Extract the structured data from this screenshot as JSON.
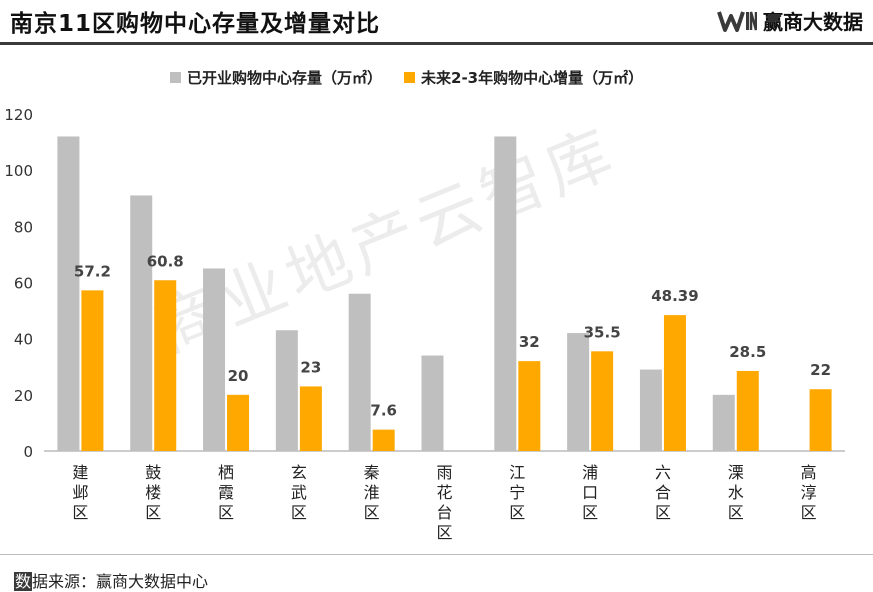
{
  "header": {
    "title": "南京11区购物中心存量及增量对比",
    "brand_text": "赢商大数据"
  },
  "watermark": "商业地产云智库",
  "footer": {
    "source_mark": "数",
    "source_rest": "据来源：赢商大数据中心"
  },
  "colors": {
    "stock": "#bfbfbf",
    "increment": "#ffa800"
  },
  "chart_data": {
    "type": "bar",
    "categories": [
      "建邺区",
      "鼓楼区",
      "栖霞区",
      "玄武区",
      "秦淮区",
      "雨花台区",
      "江宁区",
      "浦口区",
      "六合区",
      "溧水区",
      "高淳区"
    ],
    "series": [
      {
        "name": "已开业购物中心存量（万㎡）",
        "values": [
          112,
          91,
          65,
          43,
          56,
          34,
          112,
          42,
          29,
          20,
          0
        ]
      },
      {
        "name": "未来2-3年购物中心增量（万㎡）",
        "values": [
          57.2,
          60.8,
          20,
          23,
          7.6,
          null,
          32,
          35.5,
          48.39,
          28.5,
          22
        ]
      }
    ],
    "data_labels": [
      "57.2",
      "60.8",
      "20",
      "23",
      "7.6",
      "",
      "32",
      "35.5",
      "48.39",
      "28.5",
      "22"
    ],
    "ylim": [
      0,
      120
    ],
    "yticks": [
      "0",
      "20",
      "40",
      "60",
      "80",
      "100",
      "120"
    ],
    "grid": false,
    "legend_position": "top"
  }
}
